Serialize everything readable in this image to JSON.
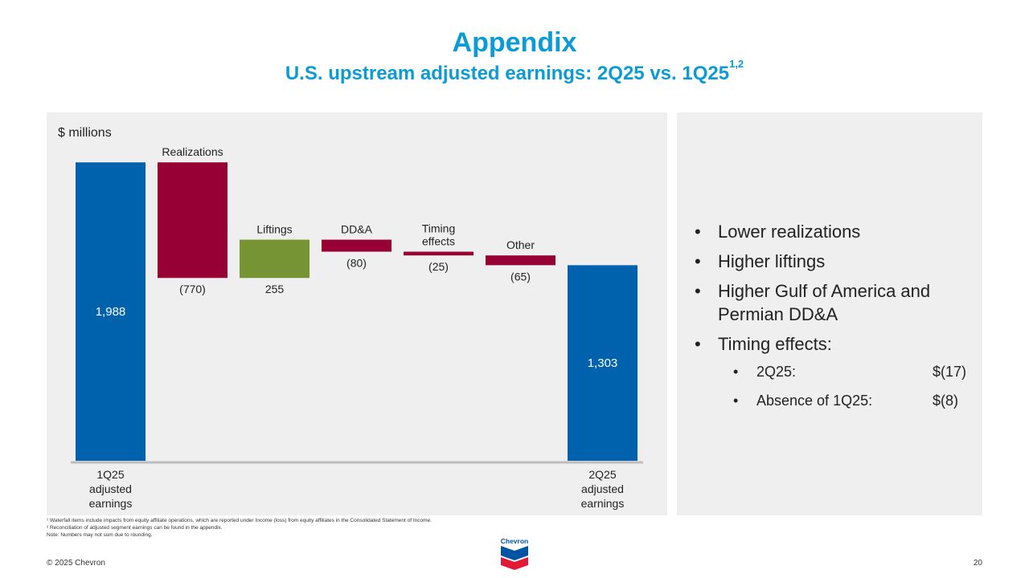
{
  "header": {
    "title": "Appendix",
    "subtitle": "U.S. upstream adjusted earnings: 2Q25 vs. 1Q25",
    "subtitle_sup": "1,2"
  },
  "chart_data": {
    "type": "waterfall",
    "unit_label": "$ millions",
    "steps": [
      {
        "label_lines": [
          "1Q25",
          "adjusted",
          "earnings"
        ],
        "value": 1988,
        "value_label": "1,988",
        "kind": "total",
        "color": "#0061ad"
      },
      {
        "label_lines": [
          "Realizations"
        ],
        "value": -770,
        "value_label": "(770)",
        "kind": "delta",
        "color": "#970034"
      },
      {
        "label_lines": [
          "Liftings"
        ],
        "value": 255,
        "value_label": "255",
        "kind": "delta",
        "color": "#769433"
      },
      {
        "label_lines": [
          "DD&A"
        ],
        "value": -80,
        "value_label": "(80)",
        "kind": "delta",
        "color": "#970034"
      },
      {
        "label_lines": [
          "Timing",
          "effects"
        ],
        "value": -25,
        "value_label": "(25)",
        "kind": "delta",
        "color": "#970034"
      },
      {
        "label_lines": [
          "Other"
        ],
        "value": -65,
        "value_label": "(65)",
        "kind": "delta",
        "color": "#970034"
      },
      {
        "label_lines": [
          "2Q25",
          "adjusted",
          "earnings"
        ],
        "value": 1303,
        "value_label": "1,303",
        "kind": "total",
        "color": "#0061ad"
      }
    ],
    "ylim": [
      0,
      2000
    ],
    "grid": false,
    "legend": "none"
  },
  "bullets": {
    "items": [
      "Lower realizations",
      "Higher liftings",
      "Higher Gulf of America and Permian DD&A",
      "Timing effects:"
    ],
    "timing_sub": [
      {
        "label": "2Q25:",
        "amount": "$(17)"
      },
      {
        "label": "Absence of 1Q25:",
        "amount": "$(8)"
      }
    ]
  },
  "footnotes": {
    "note1": "¹ Waterfall items include impacts from equity affiliate operations, which are reported under Income (loss) from equity affiliates in the Consolidated Statement of Income.",
    "note2": "² Reconciliation of adjusted segment earnings can be found in the appendix.",
    "note3": "Note: Numbers may not sum due to rounding."
  },
  "footer": {
    "copyright": "© 2025 Chevron",
    "page_number": "20",
    "logo_text": "Chevron"
  }
}
